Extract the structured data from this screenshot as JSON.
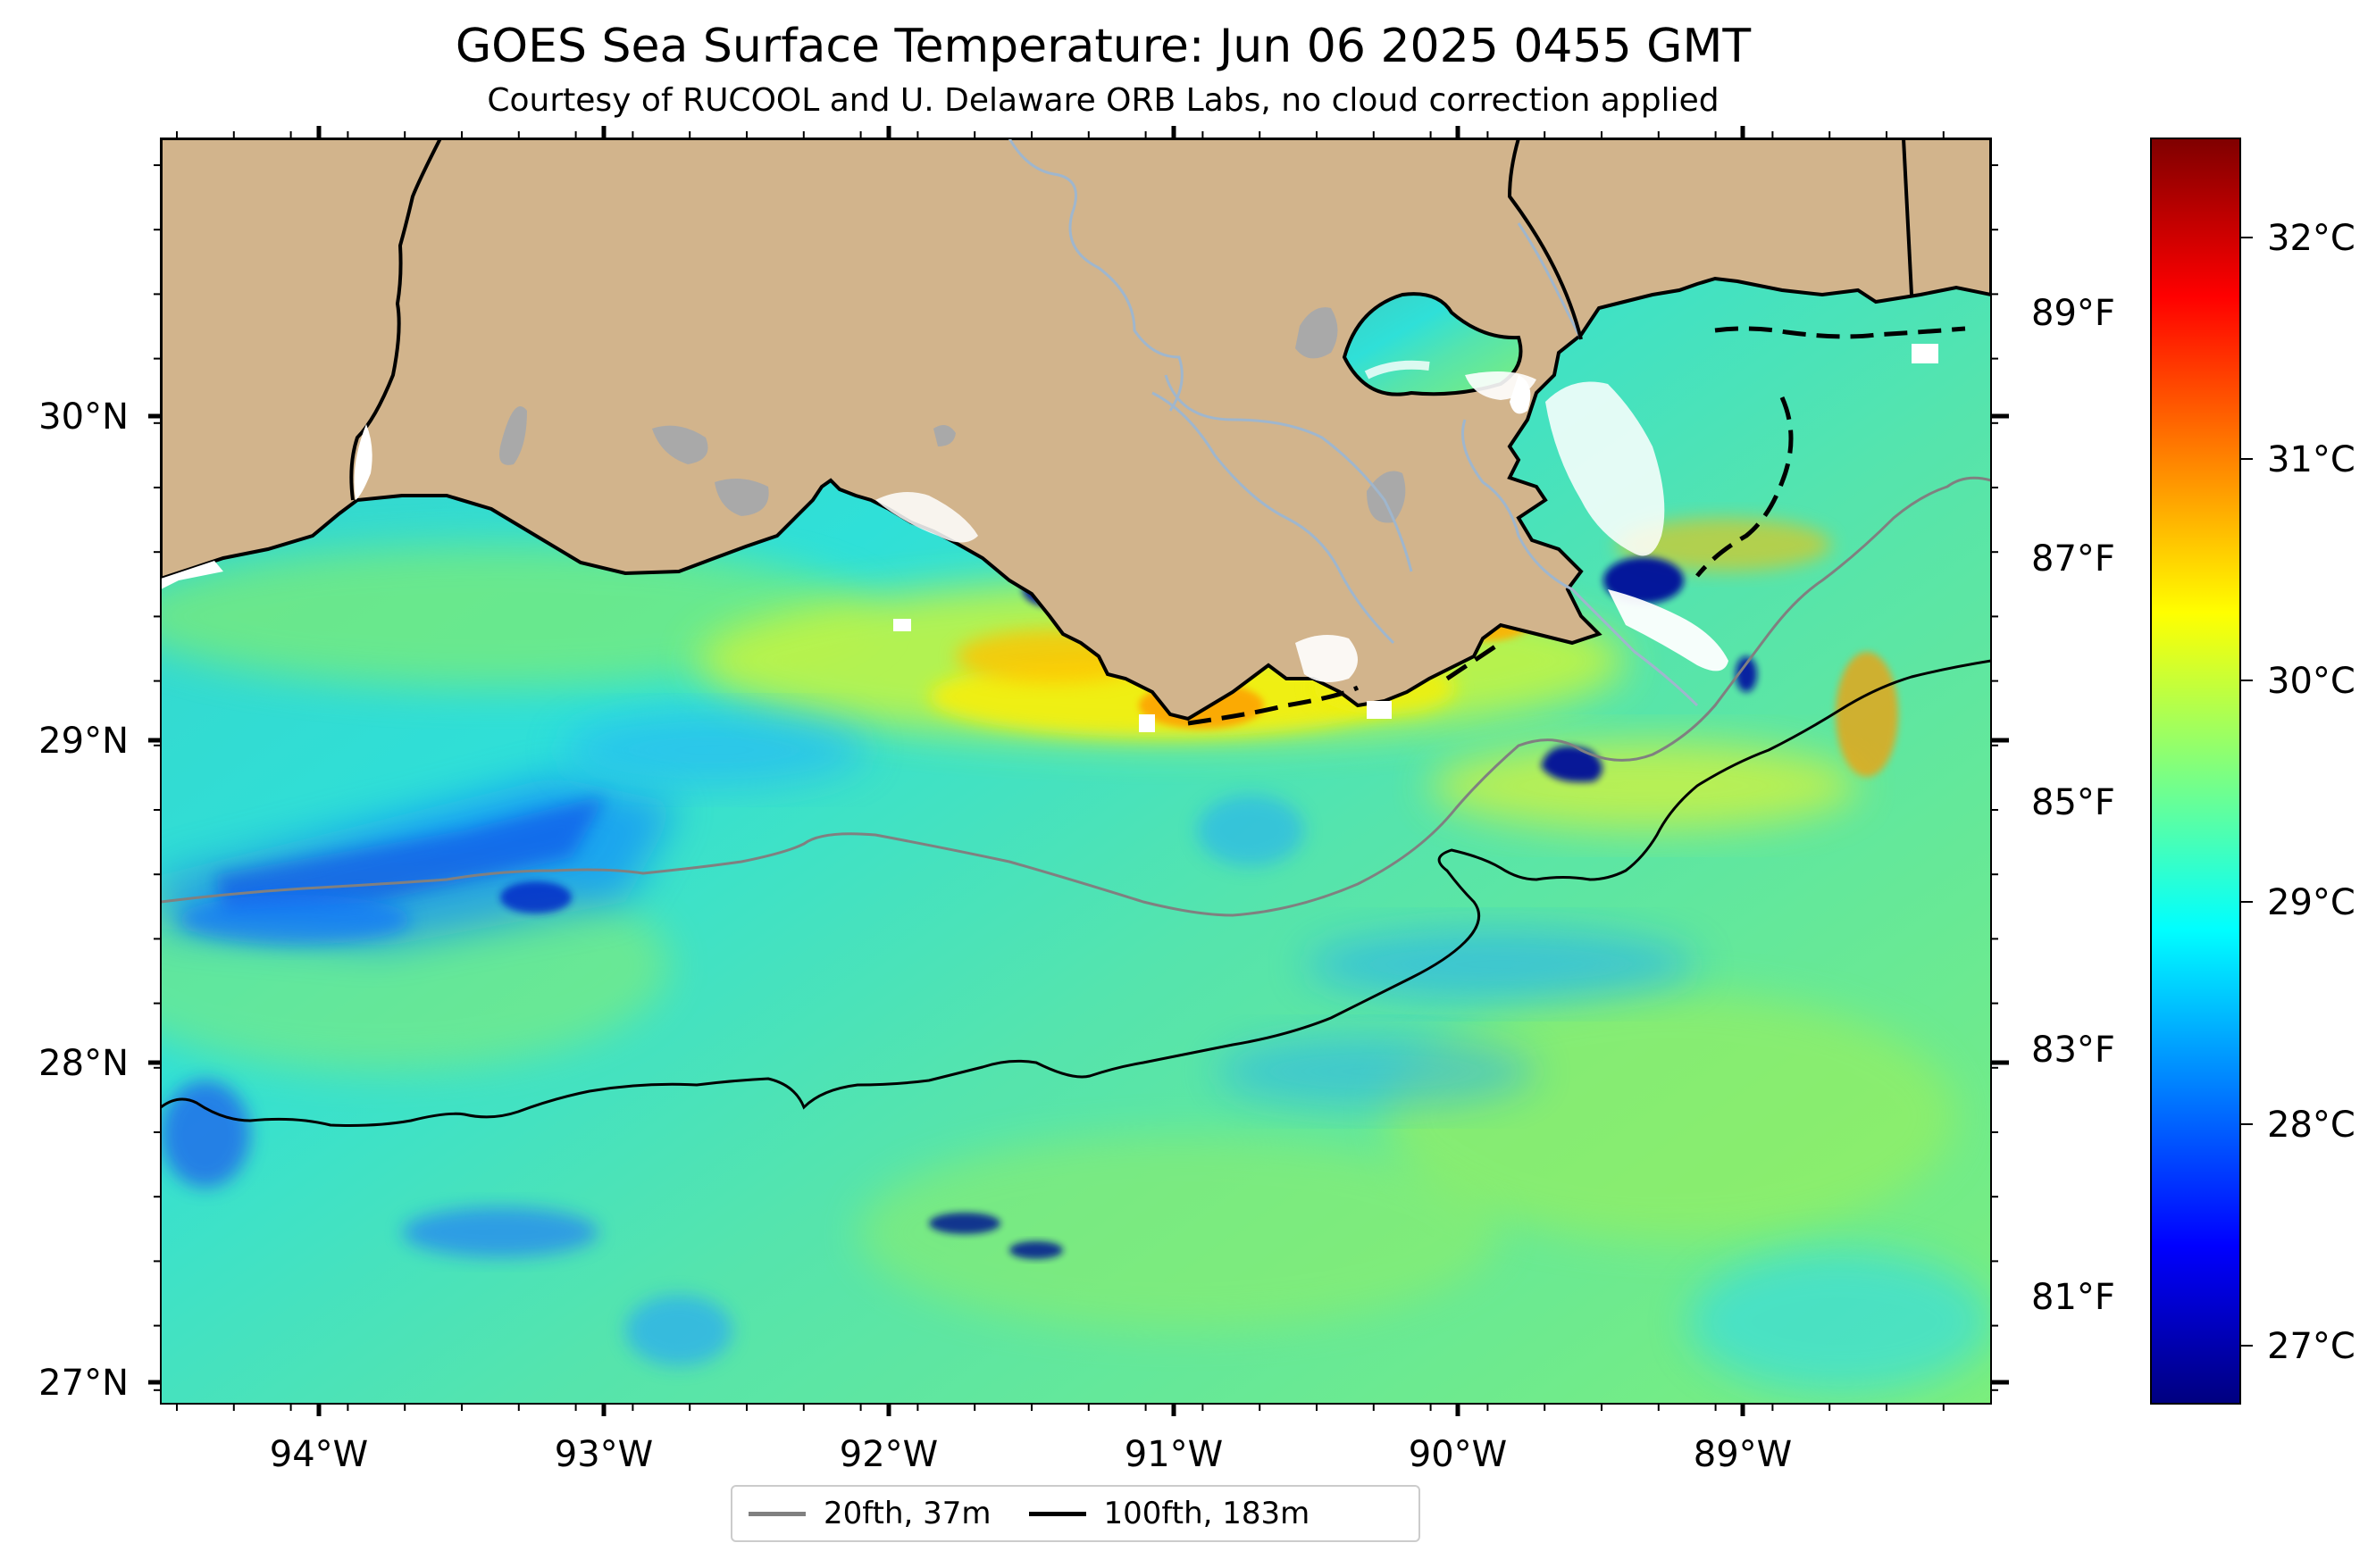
{
  "title": "GOES Sea Surface Temperature: Jun 06 2025 0455 GMT",
  "subtitle": "Courtesy of RUCOOL and U. Delaware ORB Labs, no cloud correction applied",
  "lon_ticks": [
    "94°W",
    "93°W",
    "92°W",
    "91°W",
    "90°W",
    "89°W"
  ],
  "lat_ticks": [
    "30°N",
    "29°N",
    "28°N",
    "27°N"
  ],
  "fahrenheit_ticks": [
    "89°F",
    "87°F",
    "85°F",
    "83°F",
    "81°F"
  ],
  "celsius_ticks": [
    "32°C",
    "31°C",
    "30°C",
    "29°C",
    "28°C",
    "27°C"
  ],
  "legend": [
    {
      "label": "20fth, 37m",
      "color": "#808080"
    },
    {
      "label": "100fth, 183m",
      "color": "#000000"
    }
  ],
  "colorbar": {
    "colormap": "jet",
    "min_c": 26.7,
    "max_c": 32.4
  },
  "colors": {
    "land": "#d2b48c",
    "lakes": "#a9a9a9",
    "rivers": "#9fb6cd",
    "cloud": "#ffffff"
  }
}
